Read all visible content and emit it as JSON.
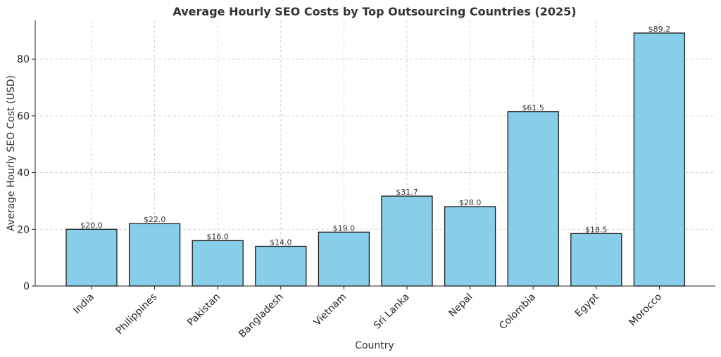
{
  "chart_data": {
    "type": "bar",
    "title": "Average Hourly SEO Costs by Top Outsourcing Countries (2025)",
    "xlabel": "Country",
    "ylabel": "Average Hourly SEO Cost (USD)",
    "categories": [
      "India",
      "Philippines",
      "Pakistan",
      "Bangladesh",
      "Vietnam",
      "Sri Lanka",
      "Nepal",
      "Colombia",
      "Egypt",
      "Morocco"
    ],
    "values": [
      20.0,
      22.0,
      16.0,
      14.0,
      19.0,
      31.7,
      28.0,
      61.5,
      18.5,
      89.2
    ],
    "data_labels": [
      "$20.0",
      "$22.0",
      "$16.0",
      "$14.0",
      "$19.0",
      "$31.7",
      "$28.0",
      "$61.5",
      "$18.5",
      "$89.2"
    ],
    "yticks": [
      0,
      20,
      40,
      60,
      80
    ],
    "ylim": [
      0,
      93.66
    ],
    "grid": true,
    "bar_color": "#87CEEB",
    "edge_color": "#1a1a1a"
  }
}
